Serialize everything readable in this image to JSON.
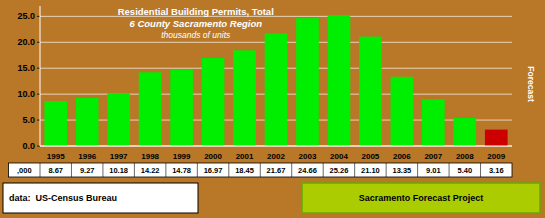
{
  "chart_data": {
    "type": "bar",
    "title": "Residential Building Permits, Total",
    "subtitle": "6 County Sacramento Region",
    "ylabel": "thousands of units",
    "categories": [
      "1995",
      "1996",
      "1997",
      "1998",
      "1999",
      "2000",
      "2001",
      "2002",
      "2003",
      "2004",
      "2005",
      "2006",
      "2007",
      "2008",
      "2009"
    ],
    "values": [
      8.67,
      9.27,
      10.18,
      14.22,
      14.78,
      16.97,
      18.45,
      21.67,
      24.66,
      25.26,
      21.1,
      13.35,
      9.01,
      5.4,
      3.16
    ],
    "value_labels": [
      "8.67",
      "9.27",
      "10.18",
      "14.22",
      "14.78",
      "16.97",
      "18.45",
      "21.67",
      "24.66",
      "25.26",
      "21.10",
      "13.35",
      "9.01",
      "5.40",
      "3.16"
    ],
    "data_labels": true,
    "colors": [
      "#00ee00",
      "#00ee00",
      "#00ee00",
      "#00ee00",
      "#00ee00",
      "#00ee00",
      "#00ee00",
      "#00ee00",
      "#00ee00",
      "#00ee00",
      "#00ee00",
      "#00ee00",
      "#00ee00",
      "#00ee00",
      "#cc0000"
    ],
    "ylim": [
      0,
      27
    ],
    "yticks": [
      {
        "value": 0.0,
        "label": "0.0"
      },
      {
        "value": 5.0,
        "label": "5.0"
      },
      {
        "value": 10.0,
        "label": "10.0"
      },
      {
        "value": 15.0,
        "label": "15.0"
      },
      {
        "value": 20.0,
        "label": "20.0"
      },
      {
        "value": 25.0,
        "label": "25.0"
      }
    ],
    "grid": true,
    "annotations": [
      ",000",
      "Forecast",
      "data:  US-Census Bureau",
      "Sacramento Forecast Project"
    ]
  }
}
